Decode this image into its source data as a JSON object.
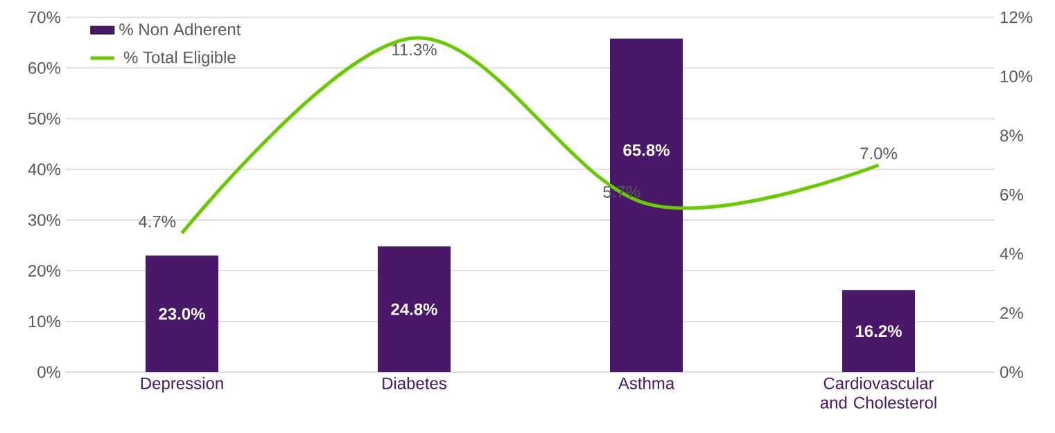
{
  "chart_data": {
    "type": "bar",
    "categories": [
      "Depression",
      "Diabetes",
      "Asthma",
      "Cardiovascular and Cholesterol"
    ],
    "series": [
      {
        "name": "% Non Adherent",
        "color": "#4a1869",
        "values": [
          23.0,
          24.8,
          65.8,
          16.2
        ],
        "value_labels": [
          "23.0%",
          "24.8%",
          "65.8%",
          "16.2%"
        ]
      },
      {
        "name": "% Total Eligible",
        "type": "line",
        "axis": "y2",
        "color": "#66cc00",
        "values": [
          4.7,
          11.3,
          5.7,
          7.0
        ],
        "value_labels": [
          "4.7%",
          "11.3%",
          "5.7%",
          "7.0%"
        ]
      }
    ],
    "ylim": [
      0,
      70
    ],
    "yticks": [
      {
        "value": 0,
        "label": "0%"
      },
      {
        "value": 10,
        "label": "10%"
      },
      {
        "value": 20,
        "label": "20%"
      },
      {
        "value": 30,
        "label": "30%"
      },
      {
        "value": 40,
        "label": "40%"
      },
      {
        "value": 50,
        "label": "50%"
      },
      {
        "value": 60,
        "label": "60%"
      },
      {
        "value": 70,
        "label": "70%"
      }
    ],
    "y2lim": [
      0,
      12
    ],
    "y2ticks": [
      {
        "value": 0,
        "label": "0%"
      },
      {
        "value": 2,
        "label": "2%"
      },
      {
        "value": 4,
        "label": "4%"
      },
      {
        "value": 6,
        "label": "6%"
      },
      {
        "value": 8,
        "label": "8%"
      },
      {
        "value": 10,
        "label": "10%"
      },
      {
        "value": 12,
        "label": "12%"
      }
    ],
    "grid": "y",
    "legend": "top left"
  }
}
